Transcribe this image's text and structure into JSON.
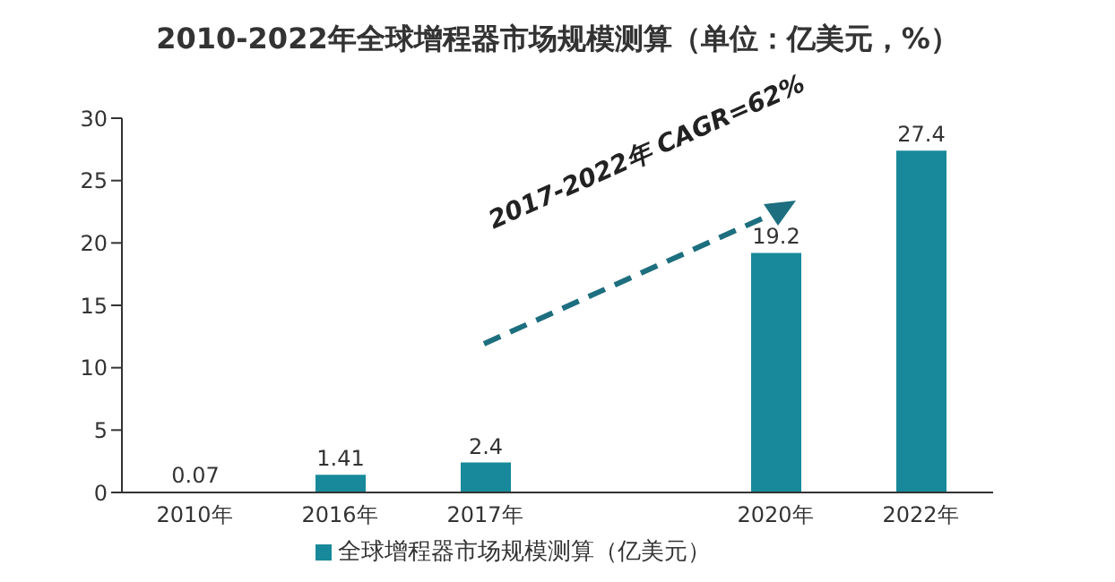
{
  "chart_data": {
    "type": "bar",
    "title": "2010-2022年全球增程器市场规模测算（单位：亿美元，%）",
    "categories": [
      "2010年",
      "2016年",
      "2017年",
      null,
      "2020年",
      "2022年"
    ],
    "series": [
      {
        "name": "全球增程器市场规模测算（亿美元）",
        "color": "#17899a",
        "values": [
          0.07,
          1.41,
          2.4,
          null,
          19.2,
          27.4
        ]
      }
    ],
    "ylim": [
      0,
      30
    ],
    "yticks": [
      0,
      5,
      10,
      15,
      20,
      25,
      30
    ],
    "legend": "bottom",
    "data_labels": true,
    "annotations": [
      "2017-2022年 CAGR=62%"
    ]
  }
}
